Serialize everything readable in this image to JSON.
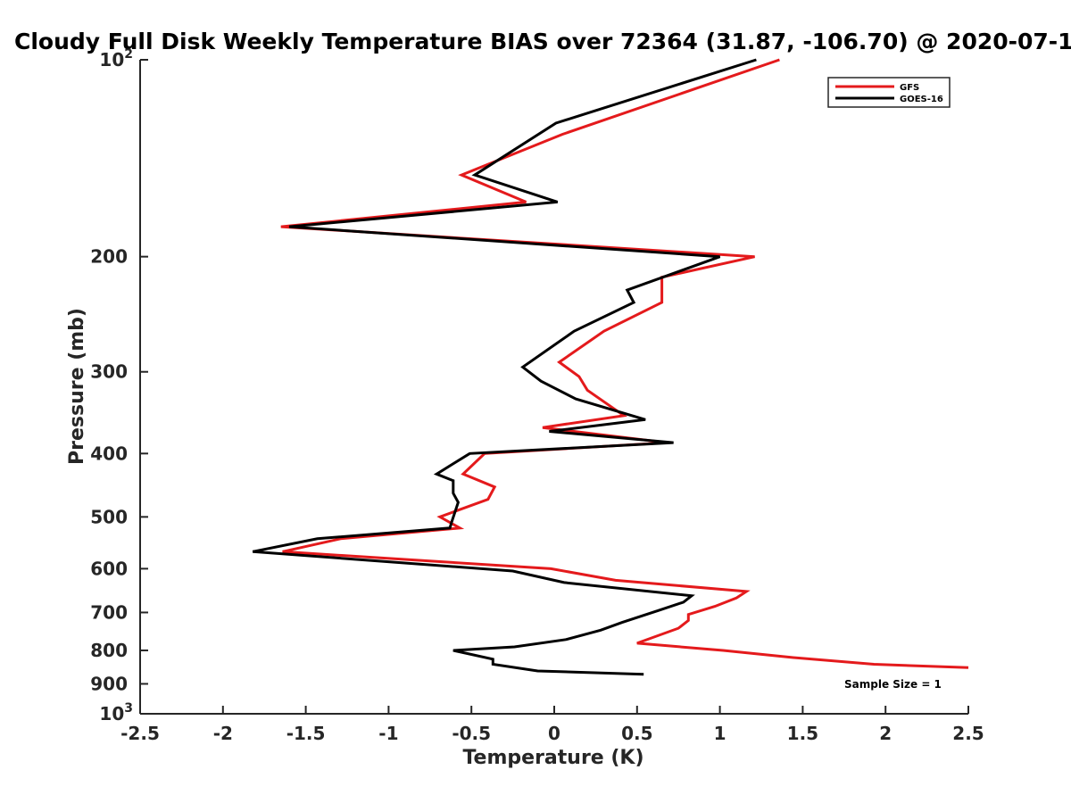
{
  "chart_data": {
    "type": "line",
    "title": "Cloudy Full Disk Weekly Temperature BIAS over 72364 (31.87, -106.70) @ 2020-07-1",
    "xlabel": "Temperature (K)",
    "ylabel": "Pressure (mb)",
    "xlim": [
      -2.5,
      2.5
    ],
    "ylim": [
      100,
      1000
    ],
    "yscale": "log",
    "yreversed": true,
    "grid": false,
    "legend_position": "top-right",
    "x_ticks": [
      {
        "value": -2.5,
        "label": "-2.5"
      },
      {
        "value": -2,
        "label": "-2"
      },
      {
        "value": -1.5,
        "label": "-1.5"
      },
      {
        "value": -1,
        "label": "-1"
      },
      {
        "value": -0.5,
        "label": "-0.5"
      },
      {
        "value": 0,
        "label": "0"
      },
      {
        "value": 0.5,
        "label": "0.5"
      },
      {
        "value": 1,
        "label": "1"
      },
      {
        "value": 1.5,
        "label": "1.5"
      },
      {
        "value": 2,
        "label": "2"
      },
      {
        "value": 2.5,
        "label": "2.5"
      }
    ],
    "y_ticks": [
      {
        "value": 100,
        "base": "10",
        "exp": "2"
      },
      {
        "value": 200,
        "label": "200"
      },
      {
        "value": 300,
        "label": "300"
      },
      {
        "value": 400,
        "label": "400"
      },
      {
        "value": 500,
        "label": "500"
      },
      {
        "value": 600,
        "label": "600"
      },
      {
        "value": 700,
        "label": "700"
      },
      {
        "value": 800,
        "label": "800"
      },
      {
        "value": 900,
        "label": "900"
      },
      {
        "value": 1000,
        "base": "10",
        "exp": "3"
      }
    ],
    "annotation": "Sample Size = 1",
    "series": [
      {
        "name": "GFS",
        "color": "#e41a1c",
        "points": [
          [
            1.36,
            100
          ],
          [
            0.05,
            130
          ],
          [
            -0.56,
            150
          ],
          [
            -0.17,
            165
          ],
          [
            -1.65,
            180
          ],
          [
            1.21,
            200
          ],
          [
            0.65,
            215
          ],
          [
            0.65,
            235
          ],
          [
            0.3,
            260
          ],
          [
            0.03,
            290
          ],
          [
            0.15,
            305
          ],
          [
            0.2,
            320
          ],
          [
            0.42,
            350
          ],
          [
            -0.07,
            365
          ],
          [
            0.68,
            385
          ],
          [
            -0.42,
            400
          ],
          [
            -0.55,
            430
          ],
          [
            -0.36,
            450
          ],
          [
            -0.4,
            470
          ],
          [
            -0.69,
            500
          ],
          [
            -0.57,
            520
          ],
          [
            -1.29,
            540
          ],
          [
            -1.64,
            565
          ],
          [
            -0.02,
            600
          ],
          [
            0.37,
            625
          ],
          [
            1.16,
            650
          ],
          [
            1.1,
            665
          ],
          [
            0.97,
            685
          ],
          [
            0.81,
            705
          ],
          [
            0.81,
            720
          ],
          [
            0.75,
            740
          ],
          [
            0.5,
            780
          ],
          [
            1.02,
            800
          ],
          [
            1.43,
            820
          ],
          [
            1.93,
            840
          ],
          [
            2.5,
            850
          ]
        ]
      },
      {
        "name": "GOES-16",
        "color": "#000000",
        "points": [
          [
            1.22,
            100
          ],
          [
            0.01,
            125
          ],
          [
            -0.48,
            150
          ],
          [
            0.02,
            165
          ],
          [
            -1.6,
            180
          ],
          [
            1.0,
            200
          ],
          [
            0.44,
            225
          ],
          [
            0.48,
            235
          ],
          [
            0.12,
            260
          ],
          [
            -0.19,
            295
          ],
          [
            -0.08,
            310
          ],
          [
            0.13,
            330
          ],
          [
            0.55,
            355
          ],
          [
            -0.03,
            370
          ],
          [
            0.72,
            385
          ],
          [
            -0.51,
            400
          ],
          [
            -0.71,
            430
          ],
          [
            -0.61,
            440
          ],
          [
            -0.61,
            460
          ],
          [
            -0.58,
            475
          ],
          [
            -0.62,
            510
          ],
          [
            -0.63,
            520
          ],
          [
            -1.43,
            540
          ],
          [
            -1.82,
            565
          ],
          [
            -0.25,
            605
          ],
          [
            0.06,
            630
          ],
          [
            0.83,
            660
          ],
          [
            0.78,
            675
          ],
          [
            0.63,
            695
          ],
          [
            0.41,
            725
          ],
          [
            0.28,
            745
          ],
          [
            0.07,
            770
          ],
          [
            -0.24,
            790
          ],
          [
            -0.61,
            800
          ],
          [
            -0.37,
            825
          ],
          [
            -0.37,
            840
          ],
          [
            -0.1,
            860
          ],
          [
            0.54,
            870
          ]
        ]
      }
    ]
  }
}
